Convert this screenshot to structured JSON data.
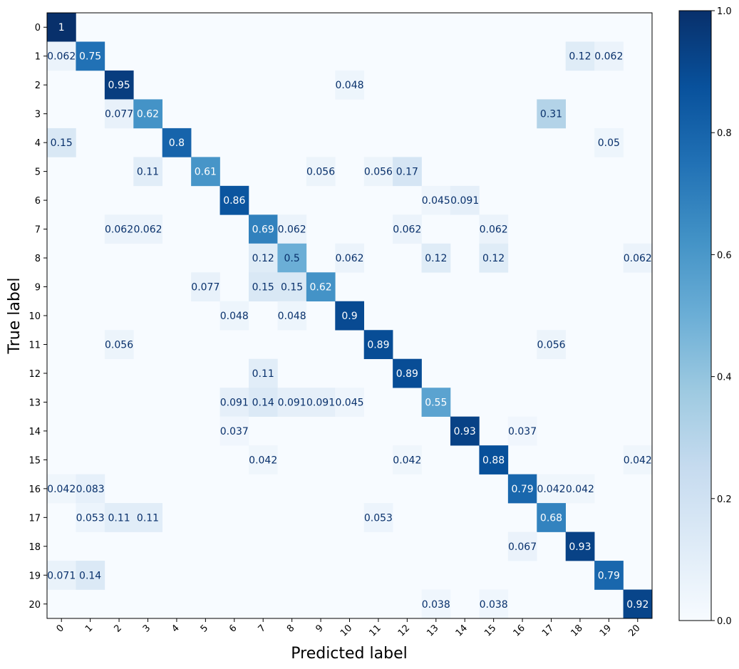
{
  "chart_data": {
    "type": "heatmap",
    "title": "",
    "xlabel": "Predicted label",
    "ylabel": "True label",
    "x_tick_labels": [
      "0",
      "1",
      "2",
      "3",
      "4",
      "5",
      "6",
      "7",
      "8",
      "9",
      "10",
      "11",
      "12",
      "13",
      "14",
      "15",
      "16",
      "17",
      "18",
      "19",
      "20"
    ],
    "y_tick_labels": [
      "0",
      "1",
      "2",
      "3",
      "4",
      "5",
      "6",
      "7",
      "8",
      "9",
      "10",
      "11",
      "12",
      "13",
      "14",
      "15",
      "16",
      "17",
      "18",
      "19",
      "20"
    ],
    "colormap": "Blues",
    "vmin": 0,
    "vmax": 1,
    "colorbar_ticks": [
      "0.0",
      "0.2",
      "0.4",
      "0.6",
      "0.8",
      "1.0"
    ],
    "cells": [
      {
        "r": 0,
        "c": 0,
        "v": 1,
        "label": "1"
      },
      {
        "r": 1,
        "c": 0,
        "v": 0.062,
        "label": "0.062"
      },
      {
        "r": 1,
        "c": 1,
        "v": 0.75,
        "label": "0.75"
      },
      {
        "r": 1,
        "c": 18,
        "v": 0.12,
        "label": "0.12"
      },
      {
        "r": 1,
        "c": 19,
        "v": 0.062,
        "label": "0.062"
      },
      {
        "r": 2,
        "c": 2,
        "v": 0.95,
        "label": "0.95"
      },
      {
        "r": 2,
        "c": 10,
        "v": 0.048,
        "label": "0.048"
      },
      {
        "r": 3,
        "c": 2,
        "v": 0.077,
        "label": "0.077"
      },
      {
        "r": 3,
        "c": 3,
        "v": 0.62,
        "label": "0.62"
      },
      {
        "r": 3,
        "c": 17,
        "v": 0.31,
        "label": "0.31"
      },
      {
        "r": 4,
        "c": 0,
        "v": 0.15,
        "label": "0.15"
      },
      {
        "r": 4,
        "c": 4,
        "v": 0.8,
        "label": "0.8"
      },
      {
        "r": 4,
        "c": 19,
        "v": 0.05,
        "label": "0.05"
      },
      {
        "r": 5,
        "c": 3,
        "v": 0.11,
        "label": "0.11"
      },
      {
        "r": 5,
        "c": 5,
        "v": 0.61,
        "label": "0.61"
      },
      {
        "r": 5,
        "c": 9,
        "v": 0.056,
        "label": "0.056"
      },
      {
        "r": 5,
        "c": 11,
        "v": 0.056,
        "label": "0.056"
      },
      {
        "r": 5,
        "c": 12,
        "v": 0.17,
        "label": "0.17"
      },
      {
        "r": 6,
        "c": 6,
        "v": 0.86,
        "label": "0.86"
      },
      {
        "r": 6,
        "c": 13,
        "v": 0.045,
        "label": "0.045"
      },
      {
        "r": 6,
        "c": 14,
        "v": 0.091,
        "label": "0.091"
      },
      {
        "r": 7,
        "c": 2,
        "v": 0.062,
        "label": "0.062"
      },
      {
        "r": 7,
        "c": 3,
        "v": 0.062,
        "label": "0.062"
      },
      {
        "r": 7,
        "c": 7,
        "v": 0.69,
        "label": "0.69"
      },
      {
        "r": 7,
        "c": 8,
        "v": 0.062,
        "label": "0.062"
      },
      {
        "r": 7,
        "c": 12,
        "v": 0.062,
        "label": "0.062"
      },
      {
        "r": 7,
        "c": 15,
        "v": 0.062,
        "label": "0.062"
      },
      {
        "r": 8,
        "c": 7,
        "v": 0.12,
        "label": "0.12"
      },
      {
        "r": 8,
        "c": 8,
        "v": 0.5,
        "label": "0.5"
      },
      {
        "r": 8,
        "c": 10,
        "v": 0.062,
        "label": "0.062"
      },
      {
        "r": 8,
        "c": 13,
        "v": 0.12,
        "label": "0.12"
      },
      {
        "r": 8,
        "c": 15,
        "v": 0.12,
        "label": "0.12"
      },
      {
        "r": 8,
        "c": 20,
        "v": 0.062,
        "label": "0.062"
      },
      {
        "r": 9,
        "c": 5,
        "v": 0.077,
        "label": "0.077"
      },
      {
        "r": 9,
        "c": 7,
        "v": 0.15,
        "label": "0.15"
      },
      {
        "r": 9,
        "c": 8,
        "v": 0.15,
        "label": "0.15"
      },
      {
        "r": 9,
        "c": 9,
        "v": 0.62,
        "label": "0.62"
      },
      {
        "r": 10,
        "c": 6,
        "v": 0.048,
        "label": "0.048"
      },
      {
        "r": 10,
        "c": 8,
        "v": 0.048,
        "label": "0.048"
      },
      {
        "r": 10,
        "c": 10,
        "v": 0.9,
        "label": "0.9"
      },
      {
        "r": 11,
        "c": 2,
        "v": 0.056,
        "label": "0.056"
      },
      {
        "r": 11,
        "c": 11,
        "v": 0.89,
        "label": "0.89"
      },
      {
        "r": 11,
        "c": 17,
        "v": 0.056,
        "label": "0.056"
      },
      {
        "r": 12,
        "c": 7,
        "v": 0.11,
        "label": "0.11"
      },
      {
        "r": 12,
        "c": 12,
        "v": 0.89,
        "label": "0.89"
      },
      {
        "r": 13,
        "c": 6,
        "v": 0.091,
        "label": "0.091"
      },
      {
        "r": 13,
        "c": 7,
        "v": 0.14,
        "label": "0.14"
      },
      {
        "r": 13,
        "c": 8,
        "v": 0.091,
        "label": "0.091"
      },
      {
        "r": 13,
        "c": 9,
        "v": 0.091,
        "label": "0.091"
      },
      {
        "r": 13,
        "c": 10,
        "v": 0.045,
        "label": "0.045"
      },
      {
        "r": 13,
        "c": 13,
        "v": 0.55,
        "label": "0.55"
      },
      {
        "r": 14,
        "c": 6,
        "v": 0.037,
        "label": "0.037"
      },
      {
        "r": 14,
        "c": 14,
        "v": 0.93,
        "label": "0.93"
      },
      {
        "r": 14,
        "c": 16,
        "v": 0.037,
        "label": "0.037"
      },
      {
        "r": 15,
        "c": 7,
        "v": 0.042,
        "label": "0.042"
      },
      {
        "r": 15,
        "c": 12,
        "v": 0.042,
        "label": "0.042"
      },
      {
        "r": 15,
        "c": 15,
        "v": 0.88,
        "label": "0.88"
      },
      {
        "r": 15,
        "c": 20,
        "v": 0.042,
        "label": "0.042"
      },
      {
        "r": 16,
        "c": 0,
        "v": 0.042,
        "label": "0.042"
      },
      {
        "r": 16,
        "c": 1,
        "v": 0.083,
        "label": "0.083"
      },
      {
        "r": 16,
        "c": 16,
        "v": 0.79,
        "label": "0.79"
      },
      {
        "r": 16,
        "c": 17,
        "v": 0.042,
        "label": "0.042"
      },
      {
        "r": 16,
        "c": 18,
        "v": 0.042,
        "label": "0.042"
      },
      {
        "r": 17,
        "c": 1,
        "v": 0.053,
        "label": "0.053"
      },
      {
        "r": 17,
        "c": 2,
        "v": 0.11,
        "label": "0.11"
      },
      {
        "r": 17,
        "c": 3,
        "v": 0.11,
        "label": "0.11"
      },
      {
        "r": 17,
        "c": 11,
        "v": 0.053,
        "label": "0.053"
      },
      {
        "r": 17,
        "c": 17,
        "v": 0.68,
        "label": "0.68"
      },
      {
        "r": 18,
        "c": 16,
        "v": 0.067,
        "label": "0.067"
      },
      {
        "r": 18,
        "c": 18,
        "v": 0.93,
        "label": "0.93"
      },
      {
        "r": 19,
        "c": 0,
        "v": 0.071,
        "label": "0.071"
      },
      {
        "r": 19,
        "c": 1,
        "v": 0.14,
        "label": "0.14"
      },
      {
        "r": 19,
        "c": 19,
        "v": 0.79,
        "label": "0.79"
      },
      {
        "r": 20,
        "c": 13,
        "v": 0.038,
        "label": "0.038"
      },
      {
        "r": 20,
        "c": 15,
        "v": 0.038,
        "label": "0.038"
      },
      {
        "r": 20,
        "c": 20,
        "v": 0.92,
        "label": "0.92"
      }
    ]
  }
}
